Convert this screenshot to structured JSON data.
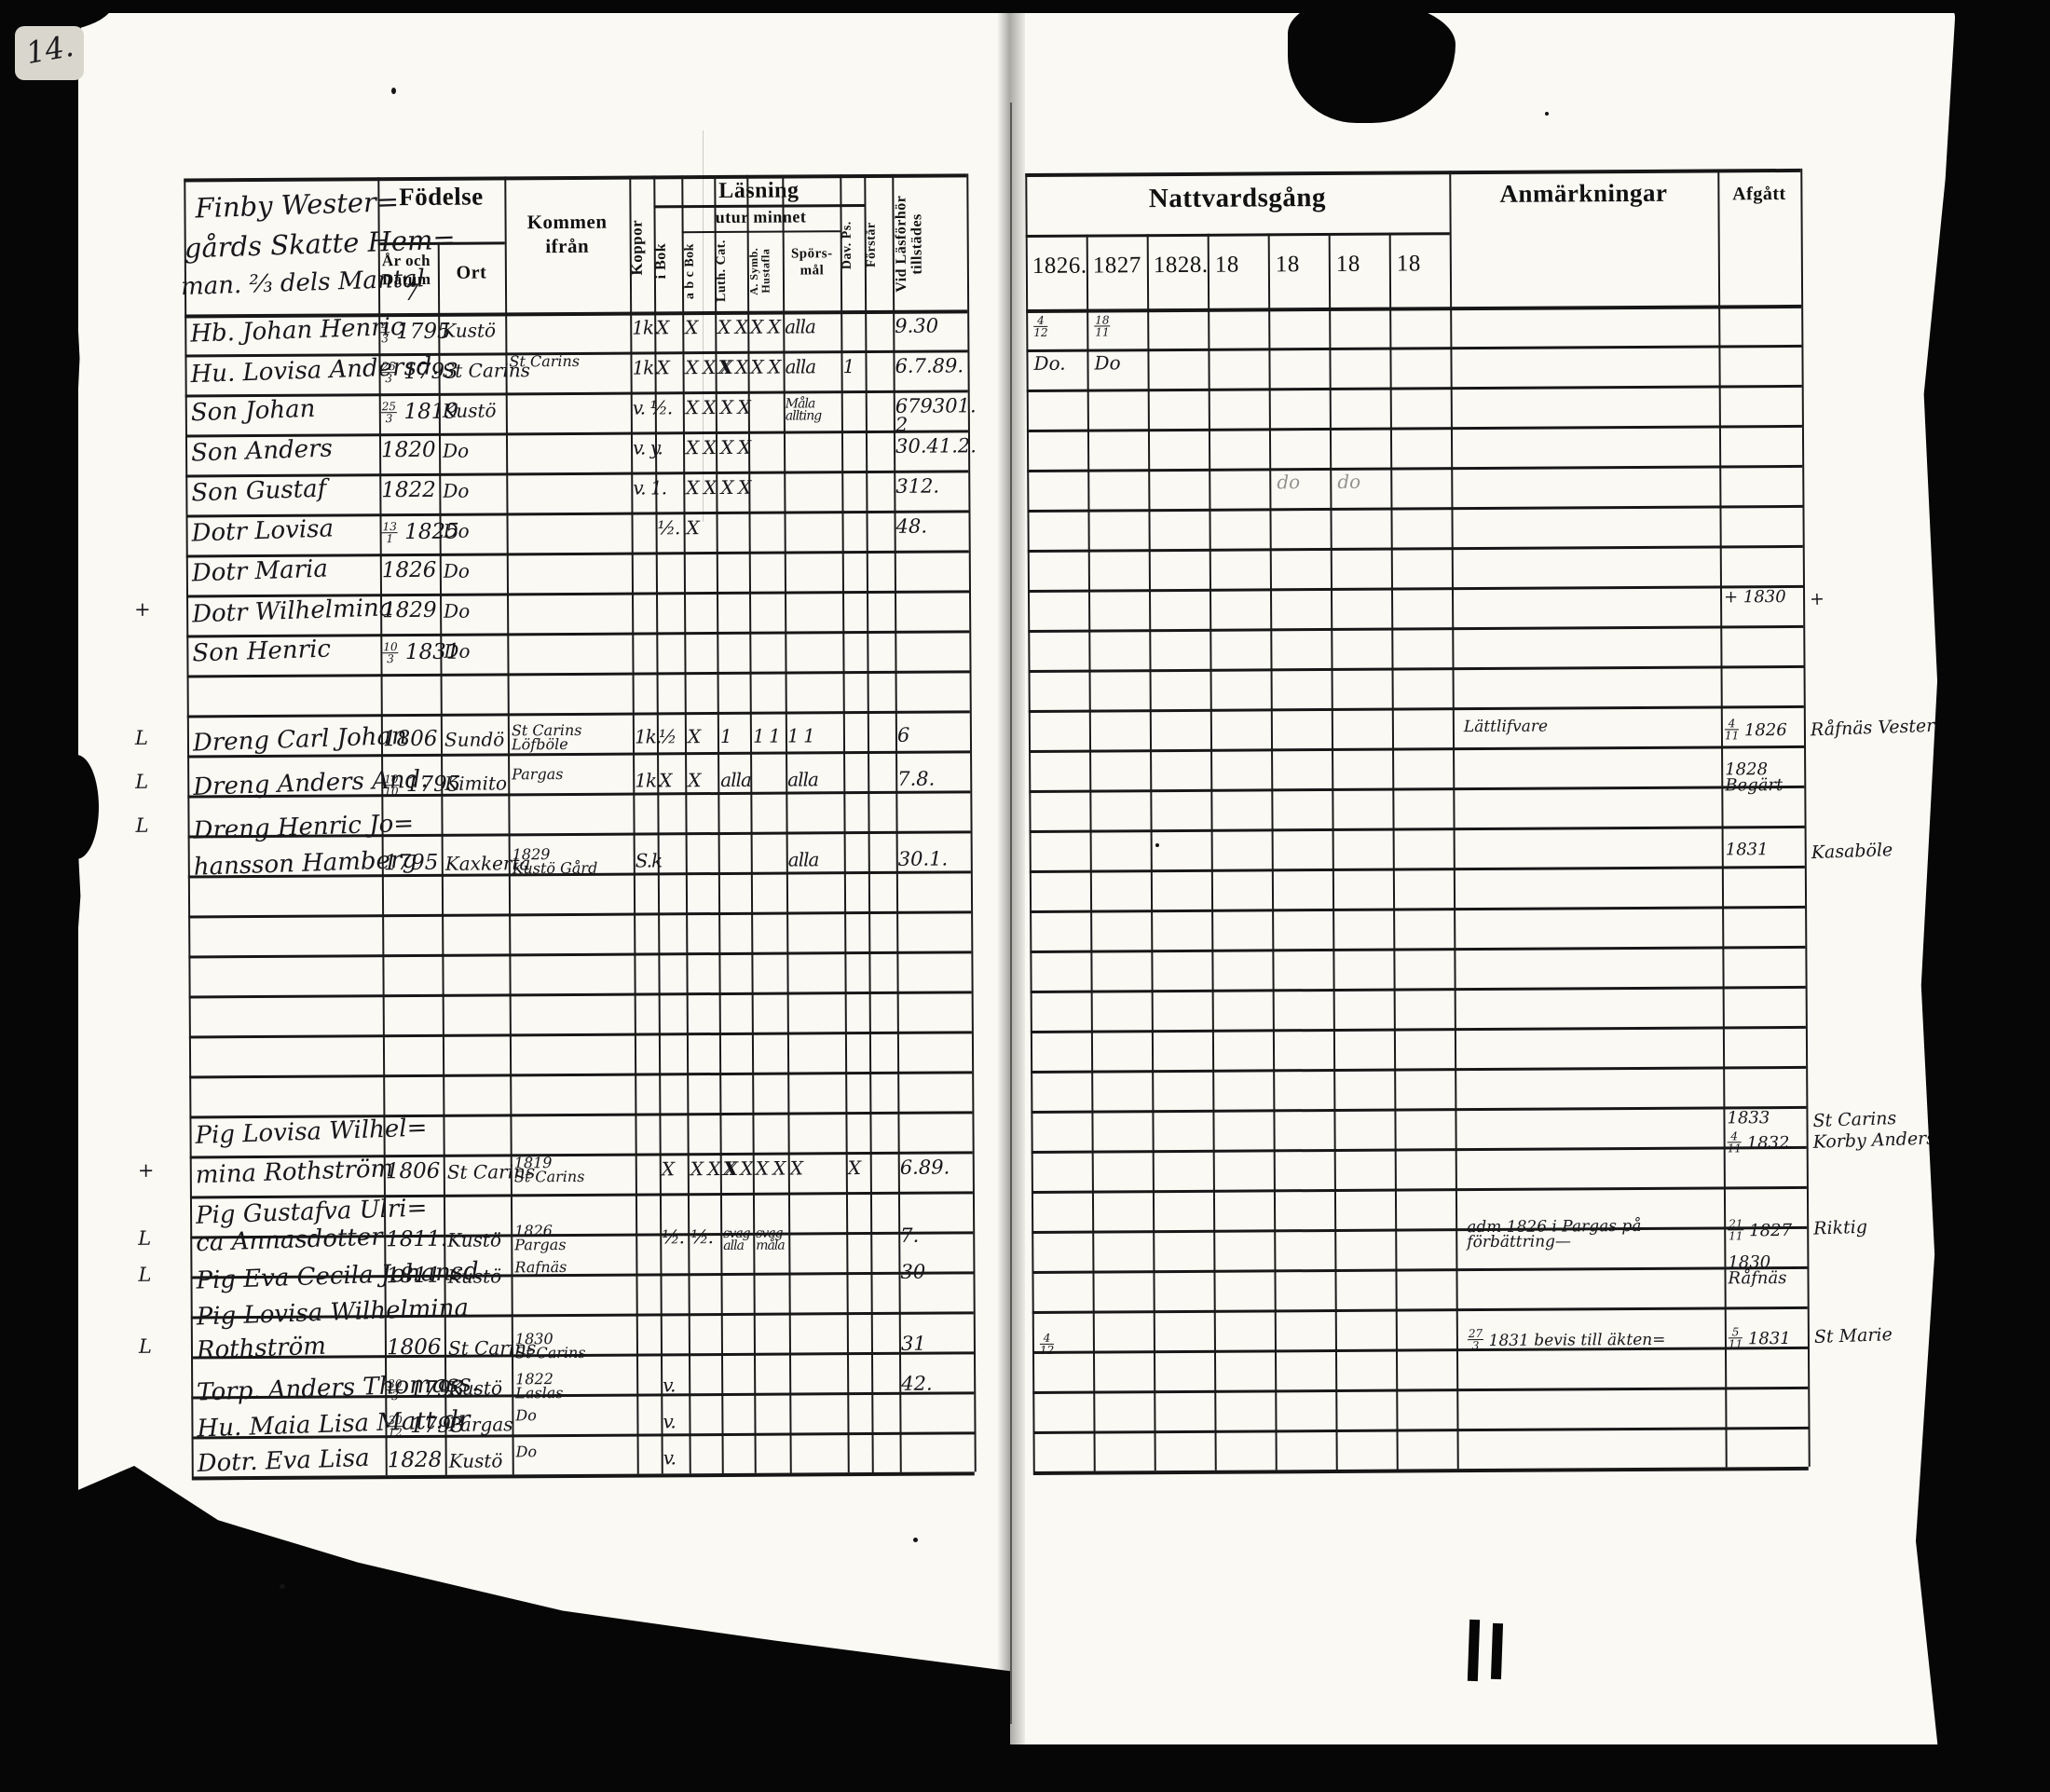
{
  "colors": {
    "paper": "#faf9f4",
    "ink": "#17161a",
    "film": "#060606"
  },
  "page": {
    "number": "14."
  },
  "left_table": {
    "corner_title_lines": [
      "Finby Wester=",
      "gårds Skatte Hem=",
      "man. ⅔ dels Mantal",
      "7"
    ],
    "headers": {
      "fodelse": "Födelse",
      "ar_och_datum": "År och\nDatum",
      "ort": "Ort",
      "kommen": "Kommen\nifrån",
      "koppor": "Koppor",
      "lasning": "Läsning",
      "utur_minnet": "utur minnet",
      "i_bok": "i Bok",
      "abc_bok": "a b c Bok",
      "luth_cat": "Luth. Cat.",
      "symb": "A. Symb.\nHustafla",
      "spors": "Spörs-\nmål",
      "dav": "Dav. Ps.",
      "forstar": "Förstår",
      "tillstades": "Vid Läsförhör\ntillstädes"
    }
  },
  "right_table": {
    "title": "Nattvardsgång",
    "years": [
      "1826.",
      "1827",
      "1828.",
      "18",
      "18",
      "18",
      "18"
    ],
    "anmarkningar": "Anmärkningar",
    "afgatt": "Afgått"
  },
  "entries": [
    {
      "i": 0,
      "name": "Hb. Johan Henric",
      "date": "4/3|1795",
      "ort": "Kustö",
      "marks": {
        "kop": "1k.",
        "ib": "X",
        "abc": "X",
        "lc": "X X",
        "sy": "X X",
        "sp": "alla"
      },
      "tillst": "9.30",
      "natt": {
        "0": "4/12",
        "1": "18/11"
      }
    },
    {
      "i": 1,
      "name": "Hu. Lovisa Andersd.",
      "date": "25/3|1793",
      "ort": "St Carins",
      "from": "St Carins",
      "marks": {
        "kop": "1k.",
        "ib": "X",
        "abc": "X X X",
        "lc": "X X",
        "sy": "X X",
        "sp": "alla",
        "dv": "1"
      },
      "tillst": "6.7.89.",
      "natt": {
        "0": "Do.",
        "1": "Do"
      }
    },
    {
      "i": 2,
      "name": "Son Johan",
      "date": "25/3|1819",
      "ort": "Kustö",
      "marks": {
        "kop": "v. ½.",
        "abc": "X X X X",
        "sp": "Måla\nallting"
      },
      "tillst": "679301.\n2"
    },
    {
      "i": 3,
      "name": "Son Anders",
      "date": "1820",
      "ort": "Do",
      "marks": {
        "kop": "v. y.",
        "abc": "X X X X"
      },
      "tillst": "30.41.2."
    },
    {
      "i": 4,
      "name": "Son Gustaf",
      "date": "1822",
      "ort": "Do",
      "marks": {
        "kop": "v. 1.",
        "abc": "X X X X"
      },
      "tillst": "312.",
      "natt": {
        "4": "do",
        "5": "do"
      }
    },
    {
      "i": 5,
      "name": "Dotr Lovisa",
      "date": "13/1|1825",
      "ort": "Do",
      "marks": {
        "ib": "½.",
        "abc": "X"
      },
      "tillst": "48."
    },
    {
      "i": 6,
      "name": "Dotr Maria",
      "date": "1826",
      "ort": "Do"
    },
    {
      "i": 7,
      "name": "Dotr Wilhelmina",
      "date": "1829",
      "ort": "Do",
      "lm": "+",
      "afg": "+ 1830",
      "marg": "+"
    },
    {
      "i": 8,
      "name": "Son Henric",
      "date": "10/3|1831",
      "ort": "Do"
    },
    {
      "i": 10.2,
      "lm": "L",
      "name": "Dreng Carl Johan",
      "date": "1806",
      "ort": "Sundö",
      "from": "St Carins\nLöfböle",
      "marks": {
        "kop": "1k.",
        "ib": "½",
        "abc": "X",
        "lc": "1",
        "sy": "1 1",
        "sp": "1 1"
      },
      "tillst": "6",
      "anm": "Lättlifvare",
      "afg": "4/11|1826",
      "marg": "Råfnäs Vestergård"
    },
    {
      "i": 11.3,
      "lm": "L",
      "name": "Dreng Anders And.",
      "date": "10/10|1795",
      "ort": "Kimito",
      "from": "Pargas",
      "marks": {
        "kop": "1k.",
        "ib": "X",
        "abc": "X",
        "lc": "alla",
        "sp": "alla"
      },
      "tillst": "7.8.",
      "afg": "1828\nBegärt"
    },
    {
      "i": 12.4,
      "lm": "L",
      "name": "Dreng Henric Jo="
    },
    {
      "i": 13.3,
      "name": "hansson Hamberg",
      "date": "1795",
      "ort": "Kaxkerta",
      "from": "1829\nKustö Gård",
      "marks": {
        "kop": "S.k",
        "sp": "alla"
      },
      "tillst": "30.1.",
      "afg": "1831",
      "marg": "Kasaböle"
    },
    {
      "i": 20,
      "name": "Pig Lovisa Wilhel=",
      "afg": "1833",
      "marg": "St Carins"
    },
    {
      "i": 20.5,
      "afg": "4/11|1832",
      "marg": "Korby Anders="
    },
    {
      "i": 21,
      "lm": "+",
      "name": "mina Rothström",
      "date": "1806",
      "ort": "St Carins",
      "from": "1819\nSt Carins",
      "marks": {
        "ib": "X",
        "abc": "X X X",
        "lc": "X X",
        "sy": "X X",
        "sp": "X",
        "dv": "X"
      },
      "tillst": "6.89."
    },
    {
      "i": 22,
      "name": "Pig Gustafva Ulri="
    },
    {
      "i": 22.7,
      "lm": "L",
      "name": "ca Annasdotter",
      "date": "1811.",
      "ort": "Kustö",
      "from": "1826.\nPargas",
      "marks": {
        "ib": "½.",
        "abc": "½.",
        "lc": "svag\nalla",
        "sy": "svag\nmåla"
      },
      "tillst": "7.",
      "anm": "adm 1826 i Pargas på\nförbättring—",
      "afg": "21/11|1827",
      "marg": "Riktig"
    },
    {
      "i": 23.6,
      "lm": "L",
      "name": "Pig Eva Cecila Johansd",
      "date": "1811",
      "ort": "Kustö",
      "from": "Rafnäs",
      "tillst": "30",
      "afg": "1830\nRåfnäs"
    },
    {
      "i": 24.5,
      "name": "Pig Lovisa Wilhelmina"
    },
    {
      "i": 25.4,
      "lm": "L",
      "name": "Rothström",
      "date": "1806",
      "ort": "St Carins",
      "from": "1830\nSt Carins",
      "tillst": "31",
      "natt": {
        "0": "4/12"
      },
      "anm": "27/3|1831 bevis till äkten=",
      "afg": "5/11|1831",
      "marg": "St Marie"
    },
    {
      "i": 26.4,
      "name": "Torp. Anders Thomass.",
      "date": "30/3|1793",
      "ort": "Kustö",
      "from": "1822\nLaslas",
      "marks": {
        "ib": "v."
      },
      "tillst": "42."
    },
    {
      "i": 27.3,
      "name": "Hu. Maia Lisa Matt.dr",
      "date": "30/12|1793",
      "ort": "Pargas",
      "from": "Do",
      "marks": {
        "ib": "v."
      }
    },
    {
      "i": 28.2,
      "name": "Dotr. Eva Lisa",
      "date": "1828",
      "ort": "Kustö",
      "from": "Do",
      "marks": {
        "ib": "v."
      }
    }
  ]
}
